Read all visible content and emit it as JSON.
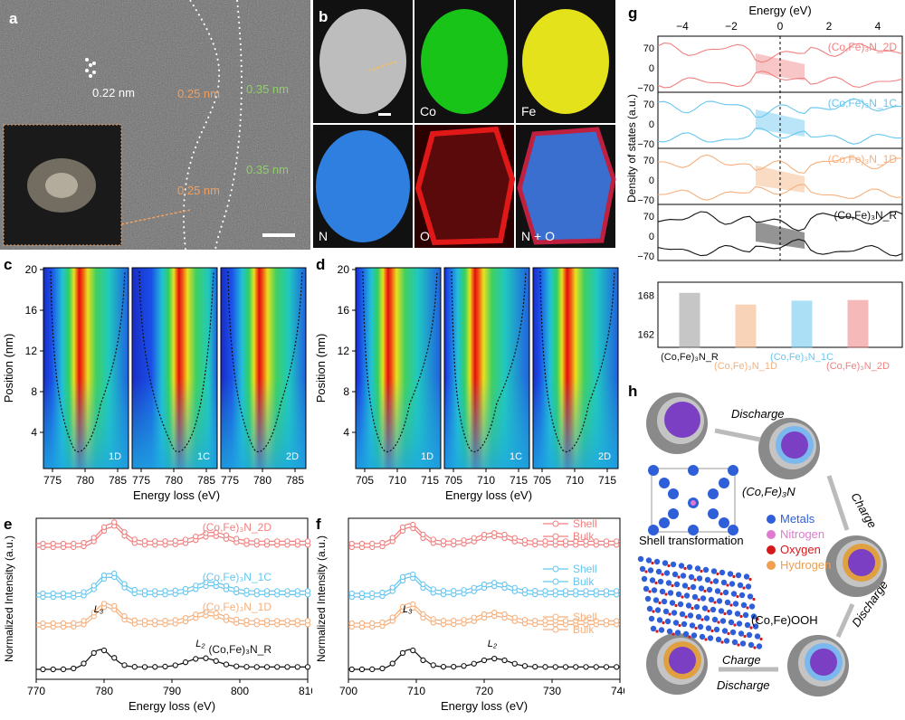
{
  "panels": {
    "a": {
      "letter": "a",
      "labels": [
        "0.22 nm",
        "0.25 nm",
        "0.25 nm",
        "0.35 nm",
        "0.35 nm"
      ]
    },
    "b": {
      "letter": "b",
      "maps": [
        {
          "label": "",
          "color": "#bdbdbd"
        },
        {
          "label": "Co",
          "color": "#19c419"
        },
        {
          "label": "Fe",
          "color": "#e4e21a"
        },
        {
          "label": "N",
          "color": "#2f7fe0"
        },
        {
          "label": "O",
          "color": "#d21616"
        },
        {
          "label": "N + O",
          "color": "#4477dd"
        }
      ]
    },
    "c": {
      "letter": "c",
      "xlabel": "Energy loss (eV)",
      "ylabel": "Position (nm)",
      "xticks": [
        "775",
        "780",
        "785"
      ],
      "yticks": [
        "20",
        "16",
        "12",
        "8",
        "4"
      ],
      "maps": [
        "1D",
        "1C",
        "2D"
      ]
    },
    "d": {
      "letter": "d",
      "xlabel": "Energy loss (eV)",
      "ylabel": "Position (nm)",
      "xticks": [
        "705",
        "710",
        "715"
      ],
      "yticks": [
        "20",
        "16",
        "12",
        "8",
        "4"
      ],
      "maps": [
        "1D",
        "1C",
        "2D"
      ]
    },
    "e": {
      "letter": "e",
      "xlabel": "Energy loss (eV)",
      "ylabel": "Normalized Intensity (a.u.)",
      "xticks": [
        "770",
        "780",
        "790",
        "800",
        "810"
      ],
      "series": [
        {
          "name": "(Co,Fe)₃N_2D",
          "color": "#f08080"
        },
        {
          "name": "(Co,Fe)₃N_1C",
          "color": "#66c6f0"
        },
        {
          "name": "(Co,Fe)₃N_1D",
          "color": "#f5b07d"
        },
        {
          "name": "(Co,Fe)₃N_R",
          "color": "#111111"
        }
      ],
      "peak_labels": [
        "L₃",
        "L₂"
      ]
    },
    "f": {
      "letter": "f",
      "xlabel": "Energy loss (eV)",
      "ylabel": "Normalized Intensity (a.u.)",
      "xticks": [
        "700",
        "710",
        "720",
        "730",
        "740"
      ],
      "legend": [
        {
          "shell": "Shell",
          "bulk": "Bulk",
          "color": "#f08080"
        },
        {
          "shell": "Shell",
          "bulk": "Bulk",
          "color": "#66c6f0"
        },
        {
          "shell": "Shell",
          "bulk": "Bulk",
          "color": "#f5b07d"
        }
      ],
      "peak_labels": [
        "L₃",
        "L₂"
      ]
    },
    "g": {
      "letter": "g",
      "top_xlabel": "Energy (eV)",
      "ylabel": "Density of states (a.u.)",
      "xticks": [
        "−4",
        "−2",
        "0",
        "2",
        "4"
      ],
      "dos_yticks": [
        "70",
        "0",
        "−70"
      ],
      "dos": [
        {
          "name": "(Co,Fe)₃N_2D",
          "color": "#f08080"
        },
        {
          "name": "(Co,Fe)₃N_1C",
          "color": "#66c6f0"
        },
        {
          "name": "(Co,Fe)₃N_1D",
          "color": "#f5b07d"
        },
        {
          "name": "(Co,Fe)₃N_R",
          "color": "#111111"
        }
      ],
      "bar_yticks": [
        "168",
        "162"
      ],
      "bars": [
        {
          "name": "(Co,Fe)₃N_R",
          "value": 168.3,
          "color": "#999999"
        },
        {
          "name": "(Co,Fe)₃N_1D",
          "value": 166.5,
          "color": "#f5b07d"
        },
        {
          "name": "(Co,Fe)₃N_1C",
          "value": 167.1,
          "color": "#66c6f0"
        },
        {
          "name": "(Co,Fe)₃N_2D",
          "value": 167.2,
          "color": "#f08080"
        }
      ],
      "bar_ylim": [
        160,
        170
      ]
    },
    "h": {
      "letter": "h",
      "arrows": [
        "Discharge",
        "Charge",
        "Discharge",
        "Charge",
        "Discharge"
      ],
      "formula_top": "(Co,Fe)₃N",
      "legend": [
        {
          "label": "Metals",
          "color": "#2f5fd8"
        },
        {
          "label": "Nitrogen",
          "color": "#e07ad0"
        },
        {
          "label": "Oxygen",
          "color": "#d81818"
        },
        {
          "label": "Hydrogen",
          "color": "#f0a050"
        }
      ],
      "shell_title": "Shell transformation",
      "formula_bottom": "(Co,Fe)OOH"
    }
  }
}
